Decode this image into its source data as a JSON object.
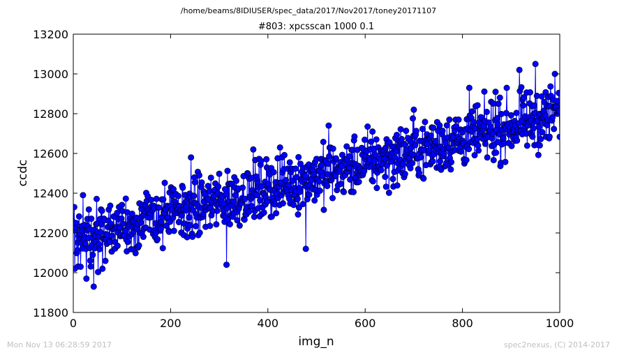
{
  "header": {
    "path": "/home/beams/8IDIUSER/spec_data/2017/Nov2017/toney20171107"
  },
  "footer": {
    "timestamp": "Mon Nov 13 06:28:59 2017",
    "credit": "spec2nexus, (C) 2014-2017"
  },
  "chart_data": {
    "type": "line",
    "title": "#803: xpcsscan 1000 0.1",
    "xlabel": "img_n",
    "ylabel": "ccdc",
    "xlim": [
      0,
      1000
    ],
    "ylim": [
      11800,
      13200
    ],
    "xticks": [
      0,
      200,
      400,
      600,
      800,
      1000
    ],
    "yticks": [
      11800,
      12000,
      12200,
      12400,
      12600,
      12800,
      13000,
      13200
    ],
    "xtick_labels": [
      "0",
      "200",
      "400",
      "600",
      "800",
      "1000"
    ],
    "ytick_labels": [
      "11800",
      "12000",
      "12200",
      "12400",
      "12600",
      "12800",
      "13000",
      "13200"
    ],
    "series_color": "#0000ff",
    "marker": "circle",
    "grid": false,
    "series": [
      {
        "x_start": 1,
        "x_step": 1,
        "count": 1000,
        "trend": "linear",
        "trend_start": 12170,
        "trend_end": 12800,
        "noise_amplitude": 130,
        "y_min_observed": 11930,
        "y_max_observed": 13050
      }
    ],
    "highlights": [
      {
        "x": 2,
        "y": 12330
      },
      {
        "x": 3,
        "y": 12020
      },
      {
        "x": 15,
        "y": 12030
      },
      {
        "x": 20,
        "y": 12390
      },
      {
        "x": 27,
        "y": 11970
      },
      {
        "x": 42,
        "y": 11930
      },
      {
        "x": 60,
        "y": 12020
      },
      {
        "x": 242,
        "y": 12580
      },
      {
        "x": 315,
        "y": 12040
      },
      {
        "x": 370,
        "y": 12620
      },
      {
        "x": 425,
        "y": 12630
      },
      {
        "x": 478,
        "y": 12120
      },
      {
        "x": 525,
        "y": 12740
      },
      {
        "x": 615,
        "y": 12710
      },
      {
        "x": 700,
        "y": 12820
      },
      {
        "x": 773,
        "y": 12770
      },
      {
        "x": 814,
        "y": 12930
      },
      {
        "x": 868,
        "y": 12910
      },
      {
        "x": 917,
        "y": 13020
      },
      {
        "x": 950,
        "y": 13050
      },
      {
        "x": 990,
        "y": 13000
      }
    ]
  }
}
